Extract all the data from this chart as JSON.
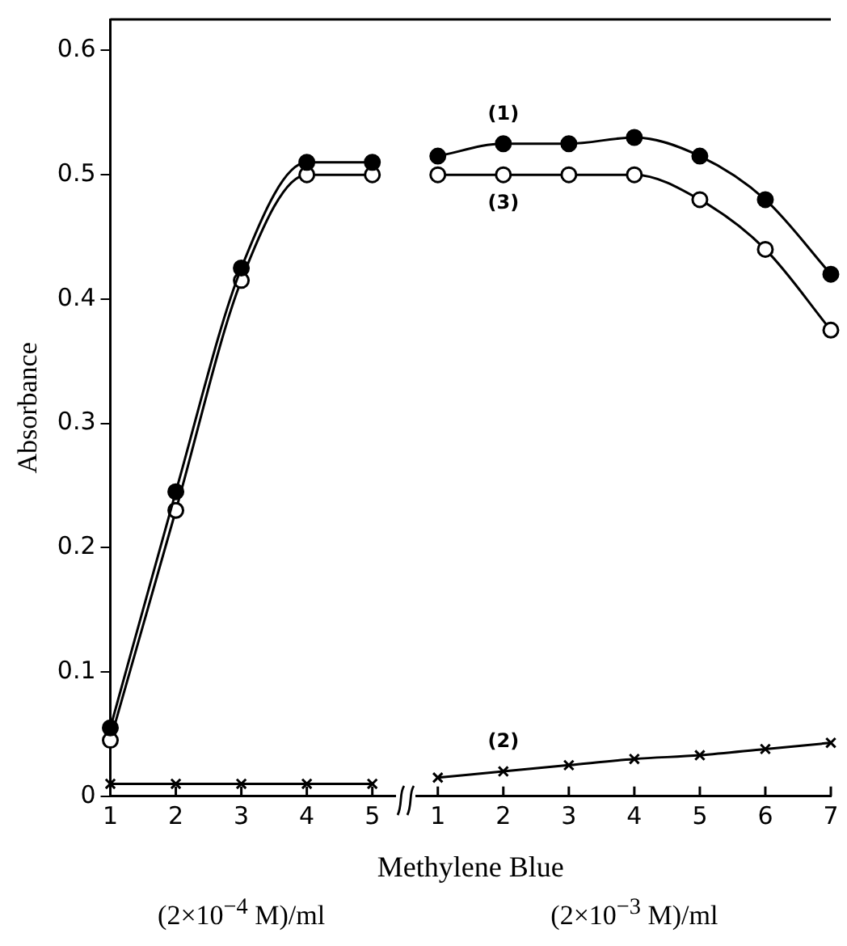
{
  "chart_data": {
    "type": "line",
    "xlabel": "Methylene Blue",
    "ylabel": "Absorbance",
    "categories": [
      "1",
      "2",
      "3",
      "4",
      "5",
      "1",
      "2",
      "3",
      "4",
      "5",
      "6",
      "7"
    ],
    "ylim": [
      0,
      0.625
    ],
    "yticks": [
      0,
      0.1,
      0.2,
      0.3,
      0.4,
      0.5,
      0.6
    ],
    "grid": false,
    "legend": false,
    "series": [
      {
        "color": "#000000",
        "marker": "circle",
        "values": [
          0.055,
          0.245,
          0.425,
          0.51,
          0.51,
          null,
          null,
          null,
          null,
          null,
          null,
          null
        ]
      },
      {
        "name": "(1)",
        "color": "#000000",
        "marker": "circle",
        "values": [
          null,
          null,
          null,
          null,
          null,
          0.515,
          0.525,
          0.525,
          0.53,
          0.515,
          0.48,
          0.42
        ]
      },
      {
        "color": "#000000",
        "marker": "circle-open",
        "values": [
          0.045,
          0.23,
          0.415,
          0.5,
          0.5,
          null,
          null,
          null,
          null,
          null,
          null,
          null
        ]
      },
      {
        "name": "(3)",
        "color": "#000000",
        "marker": "circle-open",
        "values": [
          null,
          null,
          null,
          null,
          null,
          0.5,
          0.5,
          0.5,
          0.5,
          0.48,
          0.44,
          0.375
        ]
      },
      {
        "color": "#000000",
        "marker": "cross",
        "values": [
          0.01,
          0.01,
          0.01,
          0.01,
          0.01,
          null,
          null,
          null,
          null,
          null,
          null,
          null
        ]
      },
      {
        "name": "(2)",
        "color": "#000000",
        "marker": "cross",
        "values": [
          null,
          null,
          null,
          null,
          null,
          0.015,
          0.02,
          0.025,
          0.03,
          0.033,
          0.038,
          0.043
        ]
      }
    ],
    "annotations": [
      "(2×10$^{−4}$ M)/ml",
      "(2×10$^{−3}$ M)/ml"
    ]
  }
}
